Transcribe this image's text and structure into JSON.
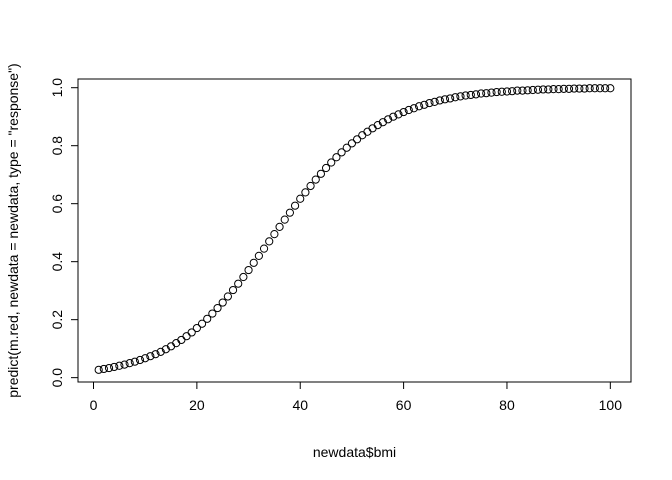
{
  "chart_data": {
    "type": "scatter",
    "xlabel": "newdata$bmi",
    "ylabel": "predict(m.red, newdata = newdata, type = \"response\")",
    "xlim": [
      -3,
      104
    ],
    "ylim": [
      -0.015,
      1.03
    ],
    "x_ticks": [
      0,
      20,
      40,
      60,
      80,
      100
    ],
    "y_ticks": [
      0.0,
      0.2,
      0.4,
      0.6,
      0.8,
      1.0
    ],
    "x_tick_labels": [
      "0",
      "20",
      "40",
      "60",
      "80",
      "100"
    ],
    "y_tick_labels": [
      "0.0",
      "0.2",
      "0.4",
      "0.6",
      "0.8",
      "1.0"
    ],
    "marker": "open-circle",
    "grid": false,
    "series": [
      {
        "x": [
          1,
          2,
          3,
          4,
          5,
          6,
          7,
          8,
          9,
          10,
          11,
          12,
          13,
          14,
          15,
          16,
          17,
          18,
          19,
          20,
          21,
          22,
          23,
          24,
          25,
          26,
          27,
          28,
          29,
          30,
          31,
          32,
          33,
          34,
          35,
          36,
          37,
          38,
          39,
          40,
          41,
          42,
          43,
          44,
          45,
          46,
          47,
          48,
          49,
          50,
          51,
          52,
          53,
          54,
          55,
          56,
          57,
          58,
          59,
          60,
          61,
          62,
          63,
          64,
          65,
          66,
          67,
          68,
          69,
          70,
          71,
          72,
          73,
          74,
          75,
          76,
          77,
          78,
          79,
          80,
          81,
          82,
          83,
          84,
          85,
          86,
          87,
          88,
          89,
          90,
          91,
          92,
          93,
          94,
          95,
          96,
          97,
          98,
          99,
          100
        ],
        "y": [
          0.027,
          0.03,
          0.033,
          0.037,
          0.041,
          0.045,
          0.05,
          0.055,
          0.061,
          0.067,
          0.074,
          0.081,
          0.089,
          0.098,
          0.108,
          0.119,
          0.13,
          0.143,
          0.156,
          0.171,
          0.186,
          0.203,
          0.221,
          0.24,
          0.259,
          0.28,
          0.302,
          0.324,
          0.347,
          0.371,
          0.396,
          0.42,
          0.445,
          0.47,
          0.495,
          0.52,
          0.545,
          0.569,
          0.593,
          0.617,
          0.639,
          0.661,
          0.683,
          0.703,
          0.723,
          0.742,
          0.76,
          0.777,
          0.793,
          0.808,
          0.822,
          0.836,
          0.848,
          0.86,
          0.871,
          0.881,
          0.891,
          0.9,
          0.908,
          0.916,
          0.923,
          0.929,
          0.936,
          0.941,
          0.947,
          0.951,
          0.956,
          0.96,
          0.963,
          0.967,
          0.97,
          0.973,
          0.975,
          0.977,
          0.98,
          0.981,
          0.983,
          0.985,
          0.986,
          0.987,
          0.988,
          0.99,
          0.99,
          0.991,
          0.992,
          0.993,
          0.994,
          0.994,
          0.995,
          0.995,
          0.996,
          0.996,
          0.997,
          0.997,
          0.997,
          0.998,
          0.998,
          0.998,
          0.998,
          0.998
        ]
      }
    ]
  }
}
